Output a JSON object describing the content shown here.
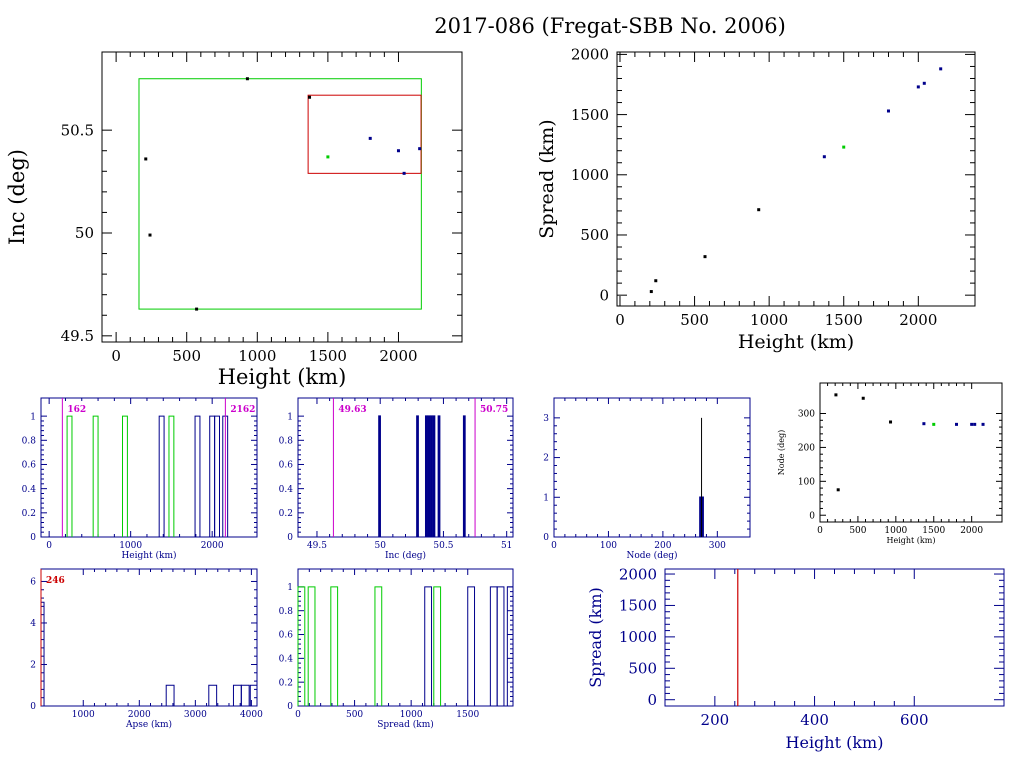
{
  "title": "2017-086 (Fregat-SBB No. 2006)",
  "colors": {
    "black": "#000000",
    "navy": "#00008b",
    "green": "#00cc00",
    "red": "#cc0000",
    "magenta": "#cc00cc"
  },
  "chart_data": [
    {
      "id": "inc-vs-height",
      "type": "scatter",
      "xlabel": "Height (km)",
      "ylabel": "Inc (deg)",
      "xlim": [
        -100,
        2450
      ],
      "ylim": [
        49.47,
        50.88
      ],
      "xticks": [
        "0",
        "500",
        "1000",
        "1500",
        "2000"
      ],
      "yticks": [
        "49.5",
        "50",
        "50.5"
      ],
      "points": [
        {
          "x": 210,
          "y": 50.36,
          "c": "black"
        },
        {
          "x": 240,
          "y": 49.99,
          "c": "black"
        },
        {
          "x": 570,
          "y": 49.63,
          "c": "black"
        },
        {
          "x": 930,
          "y": 50.75,
          "c": "black"
        },
        {
          "x": 1370,
          "y": 50.66,
          "c": "black"
        },
        {
          "x": 1500,
          "y": 50.37,
          "c": "green"
        },
        {
          "x": 1800,
          "y": 50.46,
          "c": "navy"
        },
        {
          "x": 2000,
          "y": 50.4,
          "c": "navy"
        },
        {
          "x": 2040,
          "y": 50.29,
          "c": "navy"
        },
        {
          "x": 2150,
          "y": 50.41,
          "c": "navy"
        }
      ],
      "boxes": [
        {
          "x0": 162,
          "x1": 2162,
          "y0": 49.63,
          "y1": 50.75,
          "c": "green"
        },
        {
          "x0": 1360,
          "x1": 2160,
          "y0": 50.29,
          "y1": 50.67,
          "c": "red"
        }
      ]
    },
    {
      "id": "spread-vs-height",
      "type": "scatter",
      "xlabel": "Height (km)",
      "ylabel": "Spread (km)",
      "xlim": [
        -20,
        2380
      ],
      "ylim": [
        -90,
        2020
      ],
      "xticks": [
        "0",
        "500",
        "1000",
        "1500",
        "2000"
      ],
      "yticks": [
        "0",
        "500",
        "1000",
        "1500",
        "2000"
      ],
      "points": [
        {
          "x": 210,
          "y": 30,
          "c": "black"
        },
        {
          "x": 240,
          "y": 120,
          "c": "black"
        },
        {
          "x": 570,
          "y": 320,
          "c": "black"
        },
        {
          "x": 930,
          "y": 710,
          "c": "black"
        },
        {
          "x": 1370,
          "y": 1150,
          "c": "navy"
        },
        {
          "x": 1500,
          "y": 1230,
          "c": "green"
        },
        {
          "x": 1800,
          "y": 1530,
          "c": "navy"
        },
        {
          "x": 2000,
          "y": 1730,
          "c": "navy"
        },
        {
          "x": 2040,
          "y": 1760,
          "c": "navy"
        },
        {
          "x": 2150,
          "y": 1880,
          "c": "navy"
        }
      ]
    },
    {
      "id": "height-histogram",
      "type": "bar",
      "xlabel": "Height (km)",
      "ylabel": "",
      "xlim": [
        -100,
        2550
      ],
      "ylim": [
        0,
        1.15
      ],
      "xticks": [
        "0",
        "1000",
        "2000"
      ],
      "yticks": [
        "0",
        "0.2",
        "0.4",
        "0.6",
        "0.8",
        "1"
      ],
      "bars": [
        {
          "x0": 220,
          "x1": 280,
          "v": 1,
          "c": "green"
        },
        {
          "x0": 540,
          "x1": 600,
          "v": 1,
          "c": "green"
        },
        {
          "x0": 900,
          "x1": 960,
          "v": 1,
          "c": "green"
        },
        {
          "x0": 1350,
          "x1": 1410,
          "v": 1,
          "c": "navy"
        },
        {
          "x0": 1470,
          "x1": 1530,
          "v": 1,
          "c": "green"
        },
        {
          "x0": 1790,
          "x1": 1850,
          "v": 1,
          "c": "navy"
        },
        {
          "x0": 1970,
          "x1": 2030,
          "v": 1,
          "c": "navy"
        },
        {
          "x0": 2030,
          "x1": 2090,
          "v": 1,
          "c": "navy"
        },
        {
          "x0": 2130,
          "x1": 2190,
          "v": 1,
          "c": "navy"
        }
      ],
      "markers": [
        {
          "x": 162,
          "label": "162"
        },
        {
          "x": 2162,
          "label": "2162"
        }
      ]
    },
    {
      "id": "inc-histogram",
      "type": "bar",
      "xlabel": "Inc (deg)",
      "ylabel": "",
      "xlim": [
        49.35,
        51.05
      ],
      "ylim": [
        0,
        1.15
      ],
      "xticks": [
        "49.5",
        "50",
        "50.5",
        "51"
      ],
      "yticks": [
        "0",
        "0.2",
        "0.4",
        "0.6",
        "0.8",
        "1"
      ],
      "bars": [
        {
          "x0": 49.99,
          "x1": 50.0,
          "v": 1,
          "c": "navy"
        },
        {
          "x0": 50.29,
          "x1": 50.3,
          "v": 1,
          "c": "navy"
        },
        {
          "x0": 50.36,
          "x1": 50.37,
          "v": 1,
          "c": "navy"
        },
        {
          "x0": 50.38,
          "x1": 50.39,
          "v": 1,
          "c": "navy"
        },
        {
          "x0": 50.4,
          "x1": 50.41,
          "v": 1,
          "c": "navy"
        },
        {
          "x0": 50.42,
          "x1": 50.43,
          "v": 1,
          "c": "navy"
        },
        {
          "x0": 50.46,
          "x1": 50.47,
          "v": 1,
          "c": "navy"
        },
        {
          "x0": 50.66,
          "x1": 50.67,
          "v": 1,
          "c": "navy"
        }
      ],
      "markers": [
        {
          "x": 49.63,
          "label": "49.63"
        },
        {
          "x": 50.75,
          "label": "50.75"
        }
      ]
    },
    {
      "id": "node-histogram",
      "type": "bar",
      "xlabel": "Node (deg)",
      "ylabel": "",
      "xlim": [
        0,
        360
      ],
      "ylim": [
        0,
        3.5
      ],
      "xticks": [
        "0",
        "100",
        "200",
        "300"
      ],
      "yticks": [
        "0",
        "1",
        "2",
        "3"
      ],
      "bars": [
        {
          "x0": 268,
          "x1": 274,
          "v": 1,
          "c": "navy"
        }
      ],
      "lines": [
        {
          "x": 271,
          "v": 3,
          "c": "black"
        }
      ]
    },
    {
      "id": "node-vs-height",
      "type": "scatter",
      "xlabel": "Height (km)",
      "ylabel": "Node (deg)",
      "xlim": [
        0,
        2400
      ],
      "ylim": [
        -20,
        390
      ],
      "xticks": [
        "0",
        "500",
        "1000",
        "1500",
        "2000"
      ],
      "yticks": [
        "0",
        "100",
        "200",
        "300"
      ],
      "points": [
        {
          "x": 210,
          "y": 355,
          "c": "black"
        },
        {
          "x": 240,
          "y": 75,
          "c": "black"
        },
        {
          "x": 570,
          "y": 345,
          "c": "black"
        },
        {
          "x": 930,
          "y": 275,
          "c": "black"
        },
        {
          "x": 1370,
          "y": 270,
          "c": "navy"
        },
        {
          "x": 1500,
          "y": 268,
          "c": "green"
        },
        {
          "x": 1800,
          "y": 268,
          "c": "navy"
        },
        {
          "x": 2000,
          "y": 268,
          "c": "navy"
        },
        {
          "x": 2040,
          "y": 268,
          "c": "navy"
        },
        {
          "x": 2150,
          "y": 268,
          "c": "navy"
        }
      ]
    },
    {
      "id": "apse-histogram",
      "type": "bar",
      "xlabel": "Apse (km)",
      "ylabel": "",
      "xlim": [
        246,
        4100
      ],
      "ylim": [
        0,
        6.6
      ],
      "xticks": [
        "1000",
        "2000",
        "3000",
        "4000"
      ],
      "yticks": [
        "0",
        "2",
        "4",
        "6"
      ],
      "bars": [
        {
          "x0": 246,
          "x1": 300,
          "v": 5,
          "c": "navy"
        },
        {
          "x0": 2480,
          "x1": 2620,
          "v": 1,
          "c": "navy"
        },
        {
          "x0": 3240,
          "x1": 3380,
          "v": 1,
          "c": "navy"
        },
        {
          "x0": 3680,
          "x1": 3820,
          "v": 1,
          "c": "navy"
        },
        {
          "x0": 3820,
          "x1": 3960,
          "v": 1,
          "c": "navy"
        },
        {
          "x0": 3980,
          "x1": 4100,
          "v": 1,
          "c": "navy"
        }
      ],
      "markers": [
        {
          "x": 246,
          "label": "246"
        }
      ]
    },
    {
      "id": "spread-histogram",
      "type": "bar",
      "xlabel": "Spread (km)",
      "ylabel": "",
      "xlim": [
        0,
        1900
      ],
      "ylim": [
        0,
        1.15
      ],
      "xticks": [
        "0",
        "500",
        "1000",
        "1500"
      ],
      "yticks": [
        "0",
        "0.2",
        "0.4",
        "0.6",
        "0.8",
        "1"
      ],
      "bars": [
        {
          "x0": 0,
          "x1": 60,
          "v": 1,
          "c": "green"
        },
        {
          "x0": 90,
          "x1": 150,
          "v": 1,
          "c": "green"
        },
        {
          "x0": 290,
          "x1": 350,
          "v": 1,
          "c": "green"
        },
        {
          "x0": 680,
          "x1": 740,
          "v": 1,
          "c": "green"
        },
        {
          "x0": 1120,
          "x1": 1180,
          "v": 1,
          "c": "navy"
        },
        {
          "x0": 1200,
          "x1": 1260,
          "v": 1,
          "c": "green"
        },
        {
          "x0": 1500,
          "x1": 1560,
          "v": 1,
          "c": "navy"
        },
        {
          "x0": 1700,
          "x1": 1760,
          "v": 1,
          "c": "navy"
        },
        {
          "x0": 1760,
          "x1": 1820,
          "v": 1,
          "c": "navy"
        },
        {
          "x0": 1850,
          "x1": 1900,
          "v": 1,
          "c": "navy"
        }
      ]
    },
    {
      "id": "spread-vs-height-zoom",
      "type": "line",
      "xlabel": "Height (km)",
      "ylabel": "Spread (km)",
      "xlim": [
        100,
        780
      ],
      "ylim": [
        -100,
        2080
      ],
      "xticks": [
        "200",
        "400",
        "600"
      ],
      "yticks": [
        "0",
        "500",
        "1000",
        "1500",
        "2000"
      ],
      "vlines": [
        {
          "x": 246,
          "c": "red"
        }
      ]
    }
  ]
}
